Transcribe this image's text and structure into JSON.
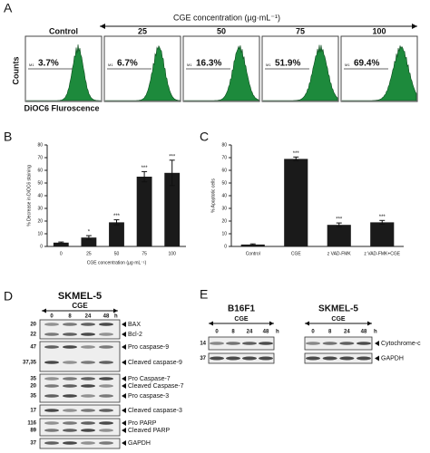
{
  "panels": {
    "A": {
      "label": "A",
      "title": "CGE concentration (µg·mL⁻¹)",
      "y_label": "Counts",
      "x_label": "DiOC6 Fluroscence",
      "gate": "M1",
      "samples": [
        {
          "name": "Control",
          "percent": "3.7%"
        },
        {
          "name": "25",
          "percent": "6.7%"
        },
        {
          "name": "50",
          "percent": "16.3%"
        },
        {
          "name": "75",
          "percent": "51.9%"
        },
        {
          "name": "100",
          "percent": "69.4%"
        }
      ]
    },
    "D": {
      "label": "D",
      "cell_line": "SKMEL-5",
      "treatment": "CGE",
      "times": [
        "0",
        "8",
        "24",
        "48"
      ],
      "unit": "h",
      "rows": [
        {
          "mw": "20",
          "label": "BAX"
        },
        {
          "mw": "22",
          "label": "Bcl-2"
        },
        {
          "mw": "47",
          "label": "Pro caspase-9"
        },
        {
          "mw": "37,35",
          "label": "Cleaved caspase-9"
        },
        {
          "mw": "35",
          "label": "Pro Caspase-7"
        },
        {
          "mw": "20",
          "label": "Cleaved Caspase-7"
        },
        {
          "mw": "35",
          "label": "Pro caspase-3"
        },
        {
          "mw": "17",
          "label": "Cleaved caspase-3"
        },
        {
          "mw": "116",
          "label": "Pro PARP"
        },
        {
          "mw": "89",
          "label": "Cleaved PARP"
        },
        {
          "mw": "37",
          "label": "GAPDH"
        }
      ]
    },
    "E": {
      "label": "E",
      "groups": [
        {
          "cell_line": "B16F1",
          "treatment": "CGE"
        },
        {
          "cell_line": "SKMEL-5",
          "treatment": "CGE"
        }
      ],
      "times": [
        "0",
        "8",
        "24",
        "48"
      ],
      "unit": "h",
      "rows": [
        {
          "mw": "14",
          "label": "Cytochrome-c"
        },
        {
          "mw": "37",
          "label": "GAPDH"
        }
      ]
    }
  },
  "chart_data": [
    {
      "type": "bar",
      "panel": "B",
      "y_label": "% Decrease in DiOC6 staining",
      "x_label": "CGE concentration (µg·mL⁻¹)",
      "categories": [
        "0",
        "25",
        "50",
        "75",
        "100"
      ],
      "values": [
        3,
        7,
        19,
        55,
        58
      ],
      "errors": [
        0.5,
        1.5,
        2,
        4,
        10
      ],
      "annotations": [
        null,
        "*",
        "***",
        "***",
        "***"
      ],
      "color": "#1a1a1a",
      "ylim": [
        0,
        80
      ],
      "yticks": [
        0,
        10,
        20,
        30,
        40,
        50,
        60,
        70,
        80
      ]
    },
    {
      "type": "bar",
      "panel": "C",
      "y_label": "% Apoptotic cells",
      "categories": [
        "Control",
        "CGE",
        "z VAD-FMK",
        "z VAD-FMK+CGE"
      ],
      "values": [
        1.5,
        69,
        17,
        19
      ],
      "errors": [
        0.5,
        1.5,
        1.5,
        1.5
      ],
      "annotations": [
        null,
        "***",
        "***",
        "***"
      ],
      "color": "#1a1a1a",
      "ylim": [
        0,
        80
      ],
      "yticks": [
        0,
        10,
        20,
        30,
        40,
        50,
        60,
        70,
        80
      ]
    }
  ]
}
